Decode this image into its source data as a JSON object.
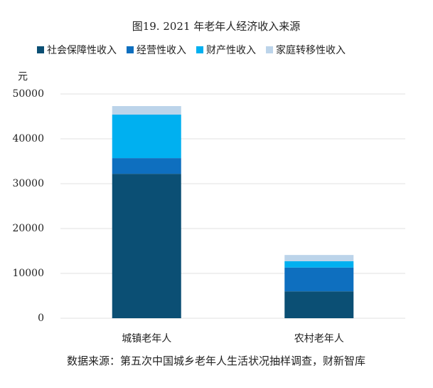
{
  "chart_data": {
    "type": "stacked_bar",
    "title": "图19. 2021 年老年人经济收入来源",
    "y_label": "元",
    "categories": [
      "城镇老年人",
      "农村老年人"
    ],
    "series": [
      {
        "name": "社会保障性收入",
        "color": "#0b4f74",
        "values": [
          32200,
          6000
        ]
      },
      {
        "name": "经营性收入",
        "color": "#0e6fbf",
        "values": [
          3500,
          5300
        ]
      },
      {
        "name": "财产性收入",
        "color": "#00b0f0",
        "values": [
          9700,
          1400
        ]
      },
      {
        "name": "家庭转移性收入",
        "color": "#bcd4ea",
        "values": [
          1900,
          1400
        ]
      }
    ],
    "ylim": [
      0,
      50000
    ],
    "yticks": [
      0,
      10000,
      20000,
      30000,
      40000,
      50000
    ],
    "grid": true,
    "legend": "top",
    "source": "数据来源：第五次中国城乡老年人生活状况抽样调查，财新智库"
  }
}
